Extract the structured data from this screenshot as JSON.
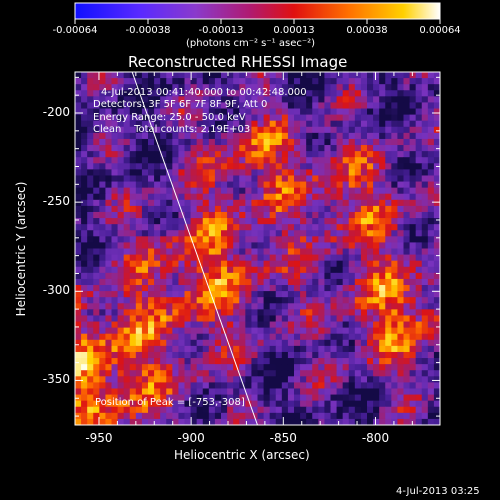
{
  "chart_data": {
    "type": "heatmap",
    "title": "Reconstructed RHESSI Image",
    "xlabel": "Heliocentric X (arcsec)",
    "ylabel": "Heliocentric Y (arcsec)",
    "xlim": [
      -963,
      -765
    ],
    "ylim": [
      -375,
      -177
    ],
    "x_ticks": [
      -950,
      -900,
      -850,
      -800
    ],
    "y_ticks": [
      -200,
      -250,
      -300,
      -350
    ],
    "colorbar": {
      "colormap": "rainbow-blue-purple-red-orange-yellow-white",
      "range": [
        -0.00064,
        0.00064
      ],
      "ticks": [
        "-0.00064",
        "-0.00038",
        "-0.00013",
        "0.00013",
        "0.00038",
        "0.00064"
      ],
      "units": "(photons cm⁻² s⁻¹ asec⁻²)"
    },
    "annotations": [
      "4-Jul-2013 00:41:40.000 to 00:42:48.000",
      "Detectors: 3F 5F 6F 7F 8F 9F, Att 0",
      "Energy Range: 25.0 - 50.0 keV",
      "Clean    Total counts: 2.19E+03",
      "Position of Peak = [-753,-308]"
    ],
    "limb_line": [
      [
        -932,
        -177
      ],
      [
        -864,
        -375
      ]
    ],
    "grid": false
  },
  "footer_date": "4-Jul-2013 03:25"
}
